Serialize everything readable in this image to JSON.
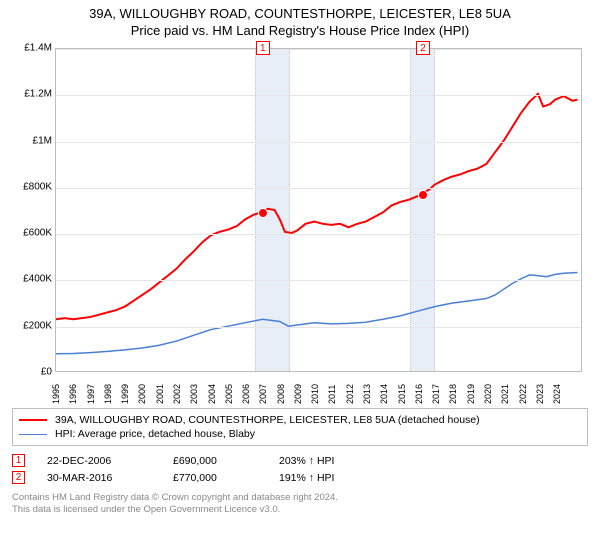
{
  "title": "39A, WILLOUGHBY ROAD, COUNTESTHORPE, LEICESTER, LE8 5UA",
  "subtitle": "Price paid vs. HM Land Registry's House Price Index (HPI)",
  "chart": {
    "type": "line",
    "background_color": "#ffffff",
    "grid_color": "#e6e6e6",
    "border_color": "#bdbdbd",
    "shade_color": "#e8eef8",
    "xlim": [
      1995,
      2025.5
    ],
    "ylim": [
      0,
      1400000
    ],
    "ytick_step": 200000,
    "yticks": [
      "£0",
      "£200K",
      "£400K",
      "£600K",
      "£800K",
      "£1M",
      "£1.2M",
      "£1.4M"
    ],
    "xticks": [
      "1995",
      "1996",
      "1997",
      "1998",
      "1999",
      "2000",
      "2001",
      "2002",
      "2003",
      "2004",
      "2005",
      "2006",
      "2007",
      "2008",
      "2009",
      "2010",
      "2011",
      "2012",
      "2013",
      "2014",
      "2015",
      "2016",
      "2017",
      "2018",
      "2019",
      "2020",
      "2021",
      "2022",
      "2023",
      "2024"
    ],
    "shade_bands": [
      {
        "from_year": 2006.5,
        "to_year": 2008.4
      },
      {
        "from_year": 2015.5,
        "to_year": 2016.8
      }
    ],
    "markers": [
      {
        "label": "1",
        "year": 2006.97,
        "price": 690000,
        "top_offset": -8
      },
      {
        "label": "2",
        "year": 2016.24,
        "price": 770000,
        "top_offset": -8
      }
    ],
    "marker_color": "#ff0000",
    "series": [
      {
        "name": "property",
        "color": "#ff0000",
        "line_width": 2,
        "points": [
          [
            1995,
            225000
          ],
          [
            1995.5,
            230000
          ],
          [
            1996,
            225000
          ],
          [
            1996.5,
            230000
          ],
          [
            1997,
            235000
          ],
          [
            1997.5,
            245000
          ],
          [
            1998,
            255000
          ],
          [
            1998.5,
            265000
          ],
          [
            1999,
            280000
          ],
          [
            1999.5,
            305000
          ],
          [
            2000,
            330000
          ],
          [
            2000.5,
            355000
          ],
          [
            2001,
            385000
          ],
          [
            2001.5,
            415000
          ],
          [
            2002,
            445000
          ],
          [
            2002.5,
            485000
          ],
          [
            2003,
            520000
          ],
          [
            2003.5,
            560000
          ],
          [
            2004,
            590000
          ],
          [
            2004.5,
            605000
          ],
          [
            2005,
            615000
          ],
          [
            2005.5,
            630000
          ],
          [
            2006,
            660000
          ],
          [
            2006.5,
            680000
          ],
          [
            2006.97,
            690000
          ],
          [
            2007.3,
            705000
          ],
          [
            2007.7,
            700000
          ],
          [
            2008,
            660000
          ],
          [
            2008.3,
            605000
          ],
          [
            2008.7,
            600000
          ],
          [
            2009,
            610000
          ],
          [
            2009.5,
            640000
          ],
          [
            2010,
            650000
          ],
          [
            2010.5,
            640000
          ],
          [
            2011,
            635000
          ],
          [
            2011.5,
            640000
          ],
          [
            2012,
            625000
          ],
          [
            2012.5,
            640000
          ],
          [
            2013,
            650000
          ],
          [
            2013.5,
            670000
          ],
          [
            2014,
            690000
          ],
          [
            2014.5,
            720000
          ],
          [
            2015,
            735000
          ],
          [
            2015.5,
            745000
          ],
          [
            2016,
            760000
          ],
          [
            2016.24,
            770000
          ],
          [
            2016.7,
            790000
          ],
          [
            2017,
            810000
          ],
          [
            2017.5,
            830000
          ],
          [
            2018,
            845000
          ],
          [
            2018.5,
            855000
          ],
          [
            2019,
            870000
          ],
          [
            2019.5,
            880000
          ],
          [
            2020,
            900000
          ],
          [
            2020.5,
            950000
          ],
          [
            2021,
            1000000
          ],
          [
            2021.5,
            1060000
          ],
          [
            2022,
            1120000
          ],
          [
            2022.5,
            1170000
          ],
          [
            2023,
            1205000
          ],
          [
            2023.3,
            1150000
          ],
          [
            2023.7,
            1160000
          ],
          [
            2024,
            1180000
          ],
          [
            2024.5,
            1195000
          ],
          [
            2025,
            1175000
          ],
          [
            2025.3,
            1180000
          ]
        ]
      },
      {
        "name": "hpi",
        "color": "#4a7fd6",
        "line_width": 1.5,
        "points": [
          [
            1995,
            75000
          ],
          [
            1996,
            76000
          ],
          [
            1997,
            80000
          ],
          [
            1998,
            85000
          ],
          [
            1999,
            92000
          ],
          [
            2000,
            100000
          ],
          [
            2001,
            112000
          ],
          [
            2002,
            130000
          ],
          [
            2003,
            155000
          ],
          [
            2004,
            180000
          ],
          [
            2005,
            195000
          ],
          [
            2006,
            210000
          ],
          [
            2007,
            225000
          ],
          [
            2008,
            215000
          ],
          [
            2008.5,
            195000
          ],
          [
            2009,
            200000
          ],
          [
            2010,
            210000
          ],
          [
            2011,
            205000
          ],
          [
            2012,
            207000
          ],
          [
            2013,
            212000
          ],
          [
            2014,
            225000
          ],
          [
            2015,
            240000
          ],
          [
            2016,
            260000
          ],
          [
            2017,
            280000
          ],
          [
            2018,
            295000
          ],
          [
            2019,
            305000
          ],
          [
            2020,
            315000
          ],
          [
            2020.5,
            330000
          ],
          [
            2021,
            355000
          ],
          [
            2021.5,
            380000
          ],
          [
            2022,
            400000
          ],
          [
            2022.5,
            418000
          ],
          [
            2023,
            415000
          ],
          [
            2023.5,
            410000
          ],
          [
            2024,
            420000
          ],
          [
            2024.5,
            425000
          ],
          [
            2025.3,
            428000
          ]
        ]
      }
    ]
  },
  "legend": {
    "items": [
      {
        "color": "#ff0000",
        "width": 2,
        "text": "39A, WILLOUGHBY ROAD, COUNTESTHORPE, LEICESTER, LE8 5UA (detached house)"
      },
      {
        "color": "#4a7fd6",
        "width": 1.5,
        "text": "HPI: Average price, detached house, Blaby"
      }
    ]
  },
  "events": [
    {
      "num": "1",
      "date": "22-DEC-2006",
      "price": "£690,000",
      "delta": "203% ↑ HPI"
    },
    {
      "num": "2",
      "date": "30-MAR-2016",
      "price": "£770,000",
      "delta": "191% ↑ HPI"
    }
  ],
  "footer": {
    "line1": "Contains HM Land Registry data © Crown copyright and database right 2024.",
    "line2": "This data is licensed under the Open Government Licence v3.0."
  }
}
